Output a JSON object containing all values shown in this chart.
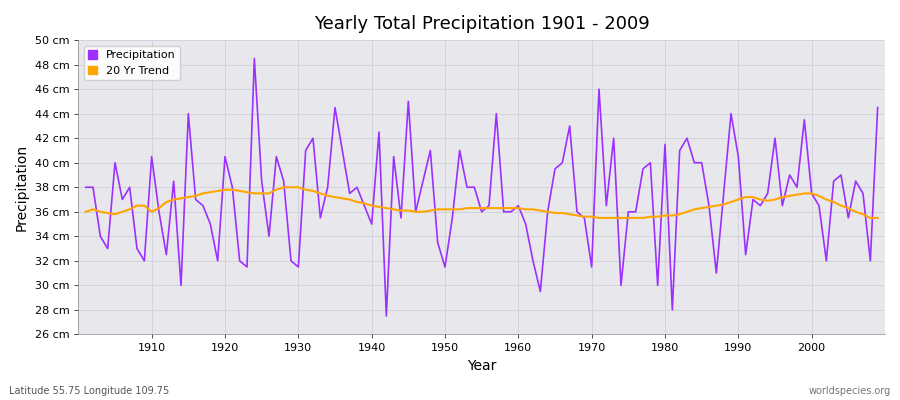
{
  "title": "Yearly Total Precipitation 1901 - 2009",
  "xlabel": "Year",
  "ylabel": "Precipitation",
  "years": [
    1901,
    1902,
    1903,
    1904,
    1905,
    1906,
    1907,
    1908,
    1909,
    1910,
    1911,
    1912,
    1913,
    1914,
    1915,
    1916,
    1917,
    1918,
    1919,
    1920,
    1921,
    1922,
    1923,
    1924,
    1925,
    1926,
    1927,
    1928,
    1929,
    1930,
    1931,
    1932,
    1933,
    1934,
    1935,
    1936,
    1937,
    1938,
    1939,
    1940,
    1941,
    1942,
    1943,
    1944,
    1945,
    1946,
    1947,
    1948,
    1949,
    1950,
    1951,
    1952,
    1953,
    1954,
    1955,
    1956,
    1957,
    1958,
    1959,
    1960,
    1961,
    1962,
    1963,
    1964,
    1965,
    1966,
    1967,
    1968,
    1969,
    1970,
    1971,
    1972,
    1973,
    1974,
    1975,
    1976,
    1977,
    1978,
    1979,
    1980,
    1981,
    1982,
    1983,
    1984,
    1985,
    1986,
    1987,
    1988,
    1989,
    1990,
    1991,
    1992,
    1993,
    1994,
    1995,
    1996,
    1997,
    1998,
    1999,
    2000,
    2001,
    2002,
    2003,
    2004,
    2005,
    2006,
    2007,
    2008,
    2009
  ],
  "precip": [
    38.0,
    38.0,
    34.0,
    33.0,
    40.0,
    37.0,
    38.0,
    33.0,
    32.0,
    40.5,
    36.0,
    32.5,
    38.5,
    30.0,
    44.0,
    37.0,
    36.5,
    35.0,
    32.0,
    40.5,
    38.0,
    32.0,
    31.5,
    48.5,
    38.5,
    34.0,
    40.5,
    38.5,
    32.0,
    31.5,
    41.0,
    42.0,
    35.5,
    38.0,
    44.5,
    41.0,
    37.5,
    38.0,
    36.5,
    35.0,
    42.5,
    27.5,
    40.5,
    35.5,
    45.0,
    36.0,
    38.5,
    41.0,
    33.5,
    31.5,
    35.5,
    41.0,
    38.0,
    38.0,
    36.0,
    36.5,
    44.0,
    36.0,
    36.0,
    36.5,
    35.0,
    32.0,
    29.5,
    36.0,
    39.5,
    40.0,
    43.0,
    36.0,
    35.5,
    31.5,
    46.0,
    36.5,
    42.0,
    30.0,
    36.0,
    36.0,
    39.5,
    40.0,
    30.0,
    41.5,
    28.0,
    41.0,
    42.0,
    40.0,
    40.0,
    36.5,
    31.0,
    37.5,
    44.0,
    40.5,
    32.5,
    37.0,
    36.5,
    37.5,
    42.0,
    36.5,
    39.0,
    38.0,
    43.5,
    37.5,
    36.5,
    32.0,
    38.5,
    39.0,
    35.5,
    38.5,
    37.5,
    32.0,
    44.5
  ],
  "trend_years": [
    1901,
    1902,
    1903,
    1904,
    1905,
    1906,
    1907,
    1908,
    1909,
    1910,
    1911,
    1912,
    1913,
    1914,
    1915,
    1916,
    1917,
    1918,
    1919,
    1920,
    1921,
    1922,
    1923,
    1924,
    1925,
    1926,
    1927,
    1928,
    1929,
    1930,
    1931,
    1932,
    1933,
    1934,
    1935,
    1936,
    1937,
    1938,
    1939,
    1940,
    1941,
    1942,
    1943,
    1944,
    1945,
    1946,
    1947,
    1948,
    1949,
    1950,
    1951,
    1952,
    1953,
    1954,
    1955,
    1956,
    1957,
    1958,
    1959,
    1960,
    1961,
    1962,
    1963,
    1964,
    1965,
    1966,
    1967,
    1968,
    1969,
    1970,
    1971,
    1972,
    1973,
    1974,
    1975,
    1976,
    1977,
    1978,
    1979,
    1980,
    1981,
    1982,
    1983,
    1984,
    1985,
    1986,
    1987,
    1988,
    1989,
    1990,
    1991,
    1992,
    1993,
    1994,
    1995,
    1996,
    1997,
    1998,
    1999,
    2000,
    2001,
    2002,
    2003,
    2004,
    2005,
    2006,
    2007,
    2008,
    2009
  ],
  "trend": [
    36.0,
    36.2,
    36.0,
    35.9,
    35.8,
    36.0,
    36.2,
    36.5,
    36.5,
    36.0,
    36.3,
    36.8,
    37.0,
    37.1,
    37.2,
    37.3,
    37.5,
    37.6,
    37.7,
    37.8,
    37.8,
    37.7,
    37.6,
    37.5,
    37.5,
    37.5,
    37.8,
    38.0,
    38.0,
    38.0,
    37.8,
    37.7,
    37.5,
    37.3,
    37.2,
    37.1,
    37.0,
    36.8,
    36.7,
    36.5,
    36.4,
    36.3,
    36.2,
    36.1,
    36.1,
    36.0,
    36.0,
    36.1,
    36.2,
    36.2,
    36.2,
    36.2,
    36.3,
    36.3,
    36.3,
    36.3,
    36.3,
    36.3,
    36.3,
    36.3,
    36.2,
    36.2,
    36.1,
    36.0,
    35.9,
    35.9,
    35.8,
    35.7,
    35.6,
    35.6,
    35.5,
    35.5,
    35.5,
    35.5,
    35.5,
    35.5,
    35.5,
    35.6,
    35.6,
    35.7,
    35.7,
    35.8,
    36.0,
    36.2,
    36.3,
    36.4,
    36.5,
    36.6,
    36.8,
    37.0,
    37.2,
    37.2,
    37.0,
    36.9,
    37.0,
    37.2,
    37.3,
    37.4,
    37.5,
    37.5,
    37.3,
    37.0,
    36.8,
    36.5,
    36.3,
    36.0,
    35.8,
    35.5,
    35.5
  ],
  "precip_color": "#9B30FF",
  "trend_color": "#FFA500",
  "fig_bg_color": "#FFFFFF",
  "plot_bg_color": "#E8E8EC",
  "grid_color": "#D0D0D8",
  "ylim": [
    26,
    50
  ],
  "yticks": [
    26,
    28,
    30,
    32,
    34,
    36,
    38,
    40,
    42,
    44,
    46,
    48,
    50
  ],
  "xticks": [
    1910,
    1920,
    1930,
    1940,
    1950,
    1960,
    1970,
    1980,
    1990,
    2000
  ],
  "legend_labels": [
    "Precipitation",
    "20 Yr Trend"
  ],
  "bottom_left_text": "Latitude 55.75 Longitude 109.75",
  "bottom_right_text": "worldspecies.org"
}
